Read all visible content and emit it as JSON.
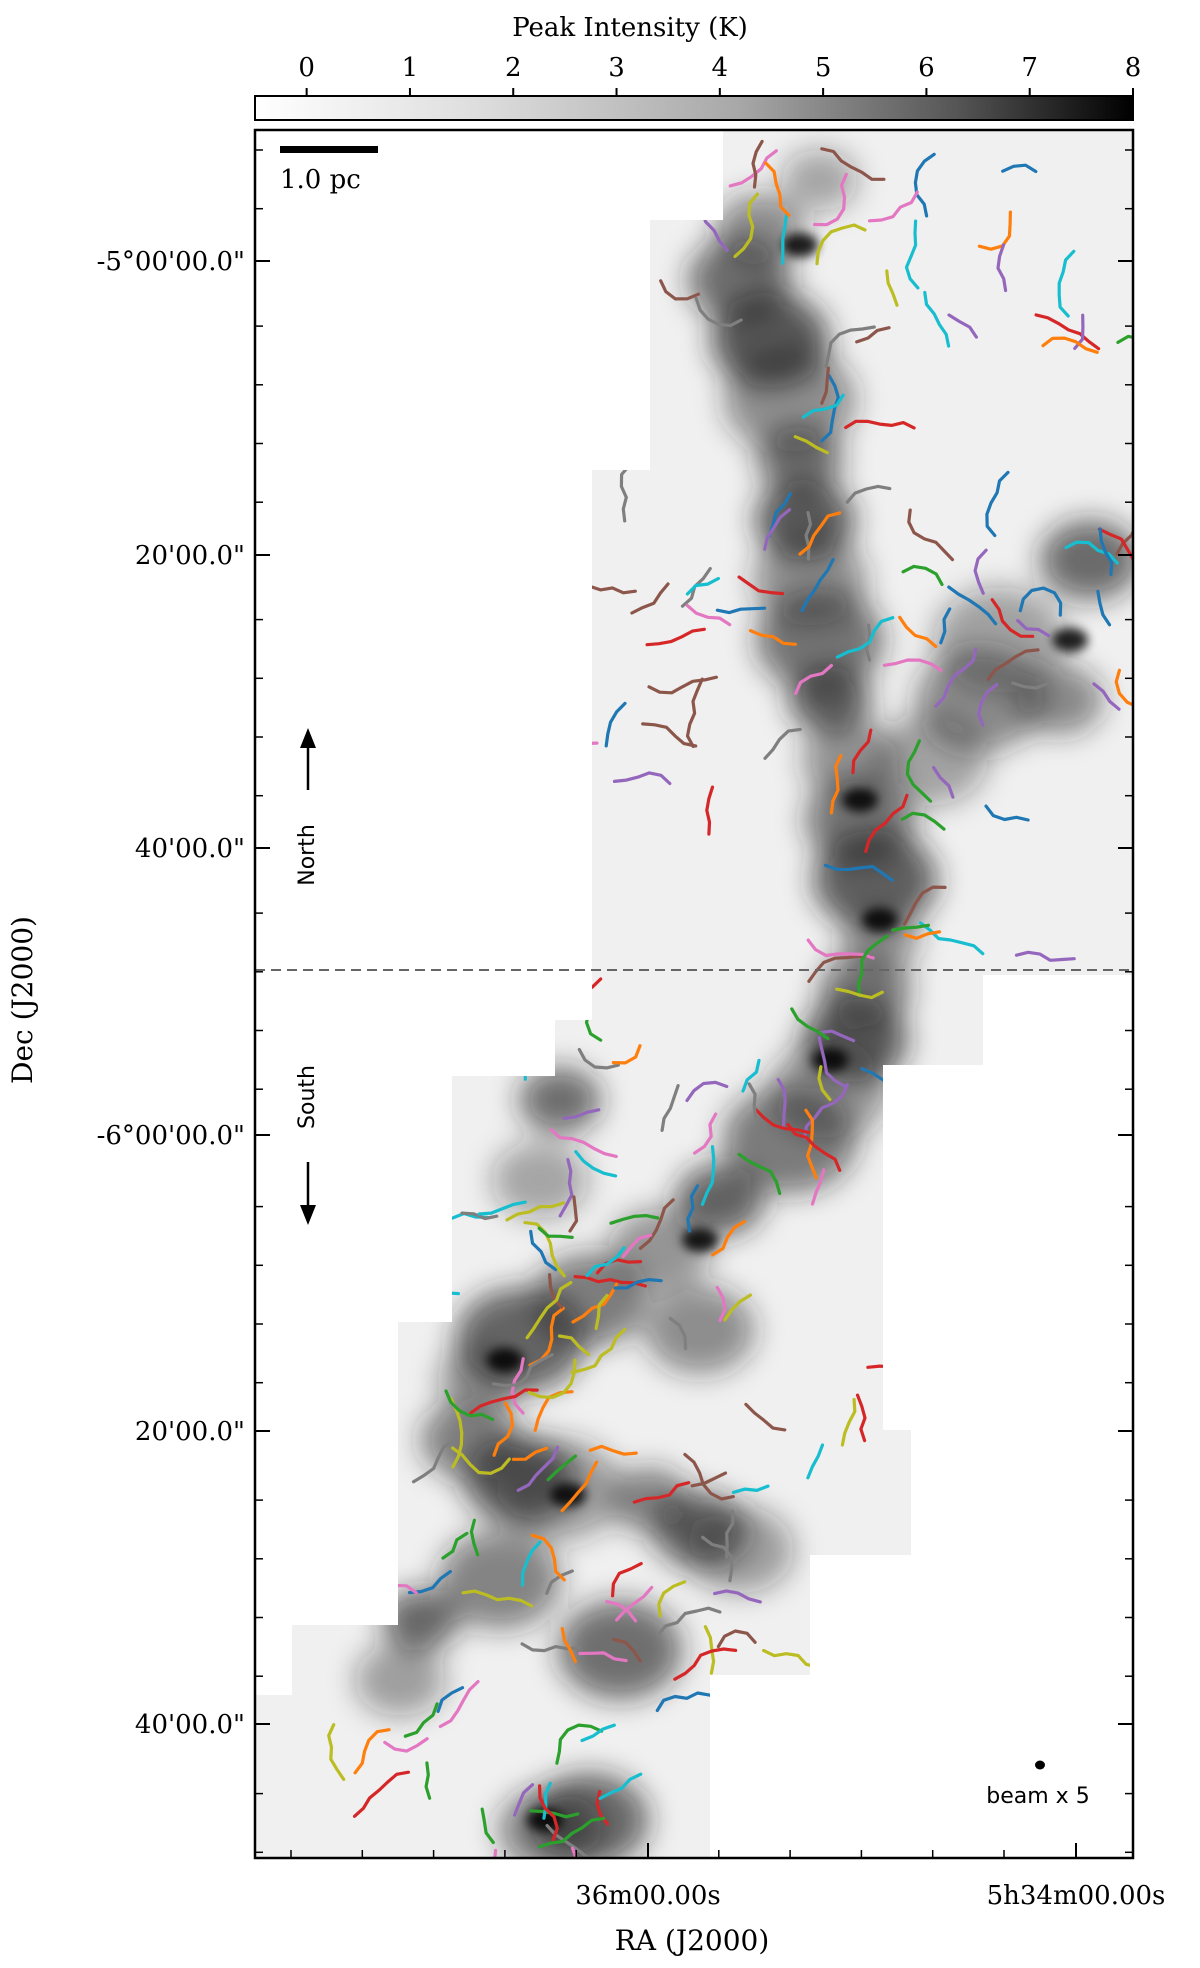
{
  "chart_data": {
    "type": "heatmap",
    "title": "",
    "xlabel": "RA (J2000)",
    "ylabel": "Dec (J2000)",
    "colorbar": {
      "label": "Peak Intensity (K)",
      "ticks": [
        "0",
        "1",
        "2",
        "3",
        "4",
        "5",
        "6",
        "7",
        "8"
      ],
      "range": [
        -0.5,
        8
      ],
      "colormap": "white-to-black (gray_r)"
    },
    "x_ticks": [
      "36m00.00s",
      "5h34m00.00s"
    ],
    "y_ticks": [
      "-5°00'00.0\"",
      "20'00.0\"",
      "40'00.0\"",
      "-6°00'00.0\"",
      "20'00.0\"",
      "40'00.0\""
    ],
    "scale_bar": "1.0 pc",
    "beam_label": "beam x 5",
    "region_labels": [
      "North",
      "South"
    ],
    "divider": "dashed horizontal line separating North and South regions",
    "filament_colors": [
      "#1f77b4",
      "#ff7f0e",
      "#2ca02c",
      "#d62728",
      "#9467bd",
      "#8c564b",
      "#e377c2",
      "#7f7f7f",
      "#bcbd22",
      "#17becf"
    ],
    "grid": false
  }
}
